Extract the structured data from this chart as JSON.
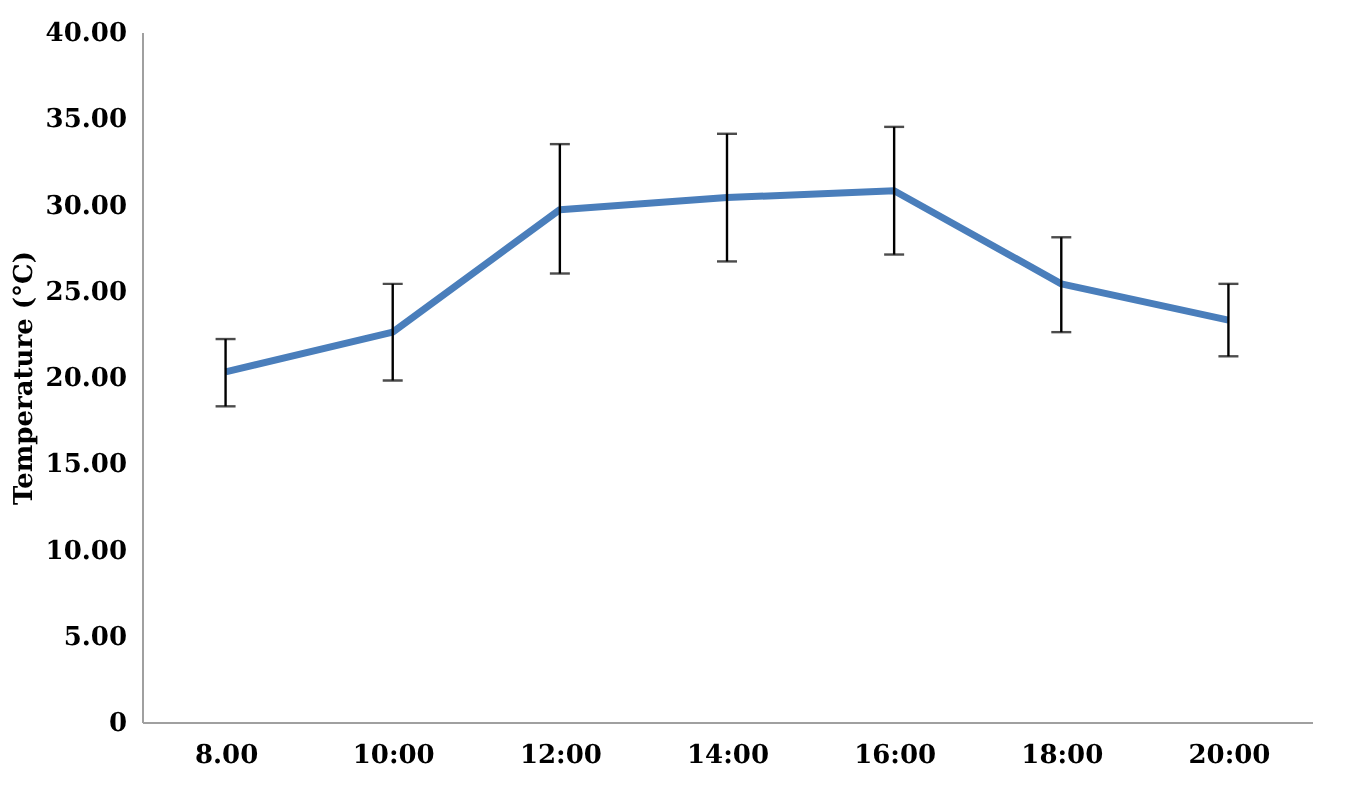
{
  "chart_data": {
    "type": "line",
    "ylabel": "Temperature (°C)",
    "categories": [
      "8.00",
      "10:00",
      "12:00",
      "14:00",
      "16:00",
      "18:00",
      "20:00"
    ],
    "series": [
      {
        "color": "#4a7ebb",
        "values": [
          20.3,
          22.6,
          29.7,
          30.4,
          30.8,
          25.4,
          23.3
        ],
        "errors": [
          [
            18.3,
            22.2
          ],
          [
            19.8,
            25.4
          ],
          [
            26.0,
            33.5
          ],
          [
            26.7,
            34.1
          ],
          [
            27.1,
            34.5
          ],
          [
            22.6,
            28.1
          ],
          [
            21.2,
            25.4
          ]
        ]
      }
    ],
    "ylim": [
      0,
      40
    ],
    "yticks": [
      0,
      {
        "value": 5,
        "label": "5.00"
      },
      {
        "value": 10,
        "label": "10.00"
      },
      {
        "value": 15,
        "label": "15.00"
      },
      {
        "value": 20,
        "label": "20.00"
      },
      {
        "value": 25,
        "label": "25.00"
      },
      {
        "value": 30,
        "label": "30.00"
      },
      {
        "value": 35,
        "label": "35.00"
      },
      {
        "value": 40,
        "label": "40.00"
      }
    ],
    "grid": false,
    "marker": "none",
    "line_style": "solid"
  }
}
